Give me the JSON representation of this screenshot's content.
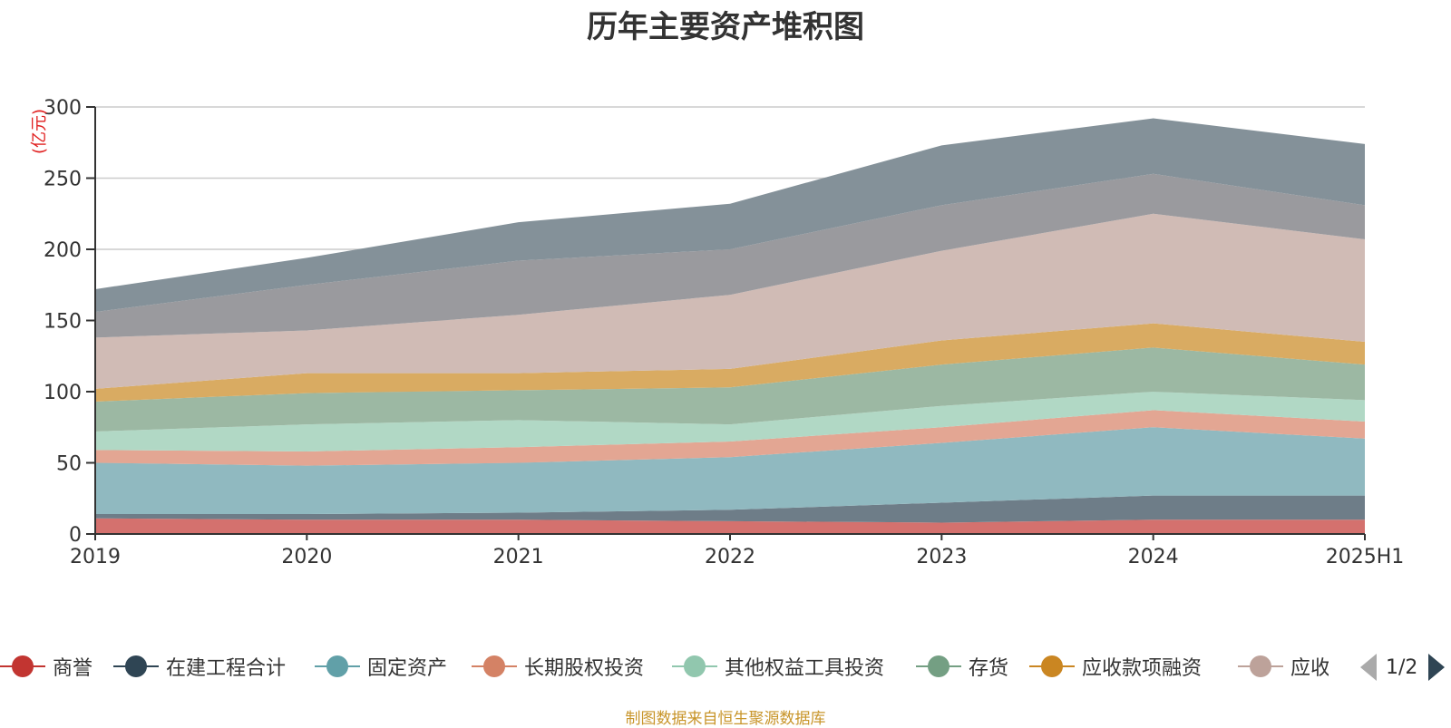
{
  "title": "历年主要资产堆积图",
  "unit": "(亿元)",
  "source": "制图数据来自恒生聚源数据库",
  "pager": {
    "text": "1/2"
  },
  "chart_data": {
    "type": "area",
    "stacked": true,
    "title": "历年主要资产堆积图",
    "ylabel": "(亿元)",
    "xlabel": "",
    "x": [
      "2019",
      "2020",
      "2021",
      "2022",
      "2023",
      "2024",
      "2025H1"
    ],
    "ylim": [
      0,
      300
    ],
    "yticks": [
      0,
      50,
      100,
      150,
      200,
      250,
      300
    ],
    "grid": true,
    "legend_position": "bottom",
    "series": [
      {
        "name": "商誉",
        "color": "#c23531",
        "fill": "#d4716e",
        "values": [
          11,
          10,
          10,
          9,
          8,
          10,
          10
        ]
      },
      {
        "name": "在建工程合计",
        "color": "#2f4554",
        "fill": "#6e7d88",
        "values": [
          3,
          4,
          5,
          8,
          14,
          17,
          17
        ]
      },
      {
        "name": "固定资产",
        "color": "#61a0a8",
        "fill": "#90b9c0",
        "values": [
          36,
          34,
          35,
          37,
          42,
          48,
          40
        ]
      },
      {
        "name": "长期股权投资",
        "color": "#d48265",
        "fill": "#e3a693",
        "values": [
          9,
          10,
          11,
          11,
          11,
          12,
          12
        ]
      },
      {
        "name": "其他权益工具投资",
        "color": "#91c7ae",
        "fill": "#b1d8c5",
        "values": [
          13,
          19,
          19,
          12,
          15,
          13,
          15
        ]
      },
      {
        "name": "存货",
        "color": "#749f83",
        "fill": "#9cb8a3",
        "values": [
          21,
          22,
          21,
          26,
          29,
          31,
          25
        ]
      },
      {
        "name": "应收款项融资",
        "color": "#ca8622",
        "fill": "#d9ab62",
        "values": [
          9,
          14,
          12,
          13,
          17,
          17,
          16
        ]
      },
      {
        "name": "应收账款",
        "color": "#bda29a",
        "fill": "#d0bbb5",
        "values": [
          36,
          30,
          41,
          52,
          63,
          77,
          72
        ]
      },
      {
        "name": "",
        "color": "#6e7074",
        "fill": "#9a9a9e",
        "values": [
          18,
          32,
          38,
          32,
          32,
          28,
          24
        ]
      },
      {
        "name": "",
        "color": "#546570",
        "fill": "#849199",
        "values": [
          16,
          19,
          27,
          32,
          42,
          39,
          43
        ]
      }
    ]
  }
}
